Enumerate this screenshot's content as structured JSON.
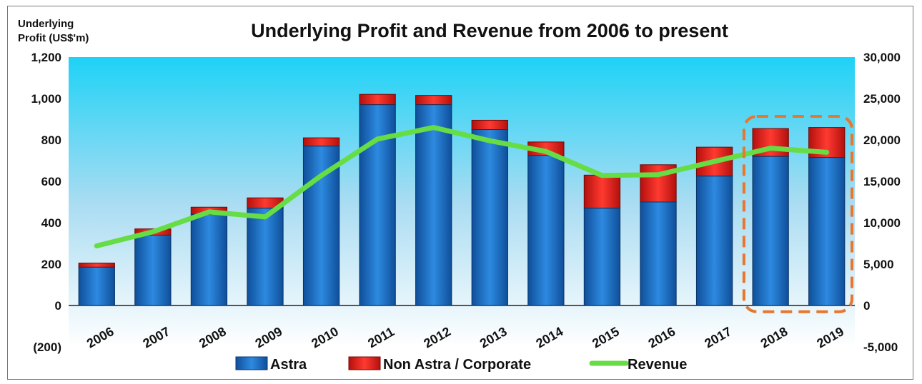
{
  "chart_data": {
    "type": "bar",
    "stacked": true,
    "title": "Underlying Profit and Revenue from 2006 to present",
    "ylabel_lines": [
      "Underlying",
      "Profit (US$'m)"
    ],
    "categories": [
      "2006",
      "2007",
      "2008",
      "2009",
      "2010",
      "2011",
      "2012",
      "2013",
      "2014",
      "2015",
      "2016",
      "2017",
      "2018",
      "2019"
    ],
    "series": [
      {
        "name": "Astra",
        "type": "bar",
        "axis": "left",
        "color": "#1f6fc4",
        "values": [
          185,
          340,
          440,
          470,
          770,
          970,
          970,
          850,
          725,
          470,
          500,
          625,
          720,
          715
        ]
      },
      {
        "name": "Non Astra / Corporate",
        "type": "bar",
        "axis": "left",
        "color": "#e8201c",
        "values": [
          20,
          30,
          35,
          50,
          40,
          50,
          45,
          45,
          65,
          160,
          180,
          140,
          135,
          145
        ]
      },
      {
        "name": "Revenue",
        "type": "line",
        "axis": "right",
        "color": "#66dd44",
        "values": [
          7200,
          8900,
          11300,
          10700,
          15700,
          20100,
          21500,
          19900,
          18600,
          15700,
          15800,
          17400,
          19000,
          18500
        ]
      }
    ],
    "y_left": {
      "min": -200,
      "max": 1200,
      "ticks": [
        "(200)",
        "0",
        "200",
        "400",
        "600",
        "800",
        "1,000",
        "1,200"
      ],
      "tick_values": [
        -200,
        0,
        200,
        400,
        600,
        800,
        1000,
        1200
      ]
    },
    "y_right": {
      "min": -5000,
      "max": 30000,
      "ticks": [
        "-5,000",
        "0",
        "5,000",
        "10,000",
        "15,000",
        "20,000",
        "25,000",
        "30,000"
      ],
      "tick_values": [
        -5000,
        0,
        5000,
        10000,
        15000,
        20000,
        25000,
        30000
      ]
    },
    "highlight": {
      "from": "2018",
      "to": "2019",
      "color": "#e8762c"
    },
    "legend_position": "bottom",
    "grid": false
  }
}
